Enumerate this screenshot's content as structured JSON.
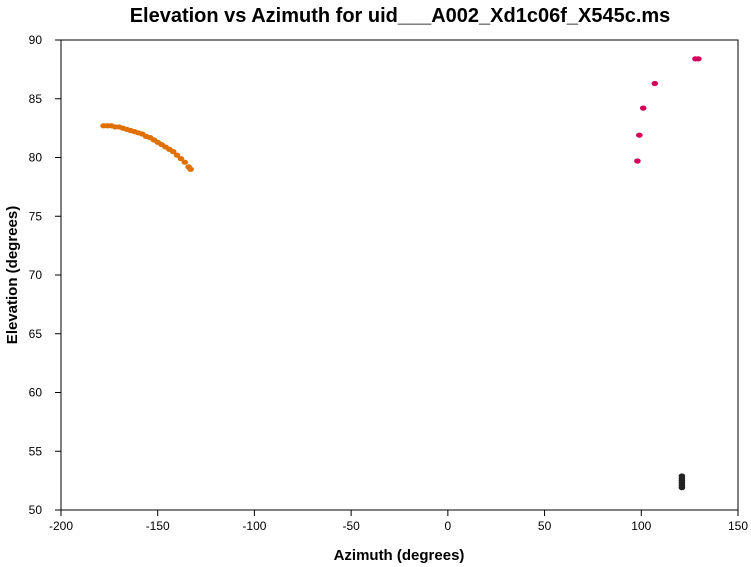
{
  "chart_data": {
    "type": "scatter",
    "title": "Elevation vs Azimuth for uid___A002_Xd1c06f_X545c.ms",
    "xlabel": "Azimuth (degrees)",
    "ylabel": "Elevation (degrees)",
    "xlim": [
      -200,
      150
    ],
    "ylim": [
      50,
      90
    ],
    "xticks": [
      -200,
      -150,
      -100,
      -50,
      0,
      50,
      100,
      150
    ],
    "yticks": [
      50,
      55,
      60,
      65,
      70,
      75,
      80,
      85,
      90
    ],
    "xtick_labels": [
      "-200",
      "-150",
      "-100",
      "-50",
      "0",
      "50",
      "100",
      "150"
    ],
    "ytick_labels": [
      "50",
      "55",
      "60",
      "65",
      "70",
      "75",
      "80",
      "85",
      "90"
    ],
    "grid": false,
    "series": [
      {
        "color": "#e07000",
        "points": [
          [
            -178,
            82.7
          ],
          [
            -176,
            82.7
          ],
          [
            -174,
            82.7
          ],
          [
            -172,
            82.6
          ],
          [
            -170,
            82.6
          ],
          [
            -168,
            82.5
          ],
          [
            -166,
            82.4
          ],
          [
            -164,
            82.3
          ],
          [
            -162,
            82.2
          ],
          [
            -160,
            82.1
          ],
          [
            -158,
            82.0
          ],
          [
            -156,
            81.8
          ],
          [
            -154,
            81.7
          ],
          [
            -152,
            81.5
          ],
          [
            -150,
            81.3
          ],
          [
            -148,
            81.1
          ],
          [
            -146,
            80.9
          ],
          [
            -144,
            80.7
          ],
          [
            -142,
            80.5
          ],
          [
            -140,
            80.2
          ],
          [
            -138,
            79.9
          ],
          [
            -136,
            79.6
          ],
          [
            -134,
            79.2
          ],
          [
            -133,
            79.0
          ]
        ]
      },
      {
        "color": "#d4005a",
        "points": [
          [
            98,
            79.7
          ],
          [
            99,
            81.9
          ],
          [
            101,
            84.2
          ],
          [
            107,
            86.3
          ],
          [
            128,
            88.4
          ],
          [
            129.5,
            88.4
          ]
        ]
      },
      {
        "color": "#222222",
        "points": [
          [
            121,
            52.9
          ],
          [
            121,
            52.7
          ],
          [
            121,
            52.5
          ],
          [
            121,
            52.3
          ],
          [
            121,
            52.1
          ],
          [
            121,
            51.9
          ]
        ]
      }
    ]
  }
}
